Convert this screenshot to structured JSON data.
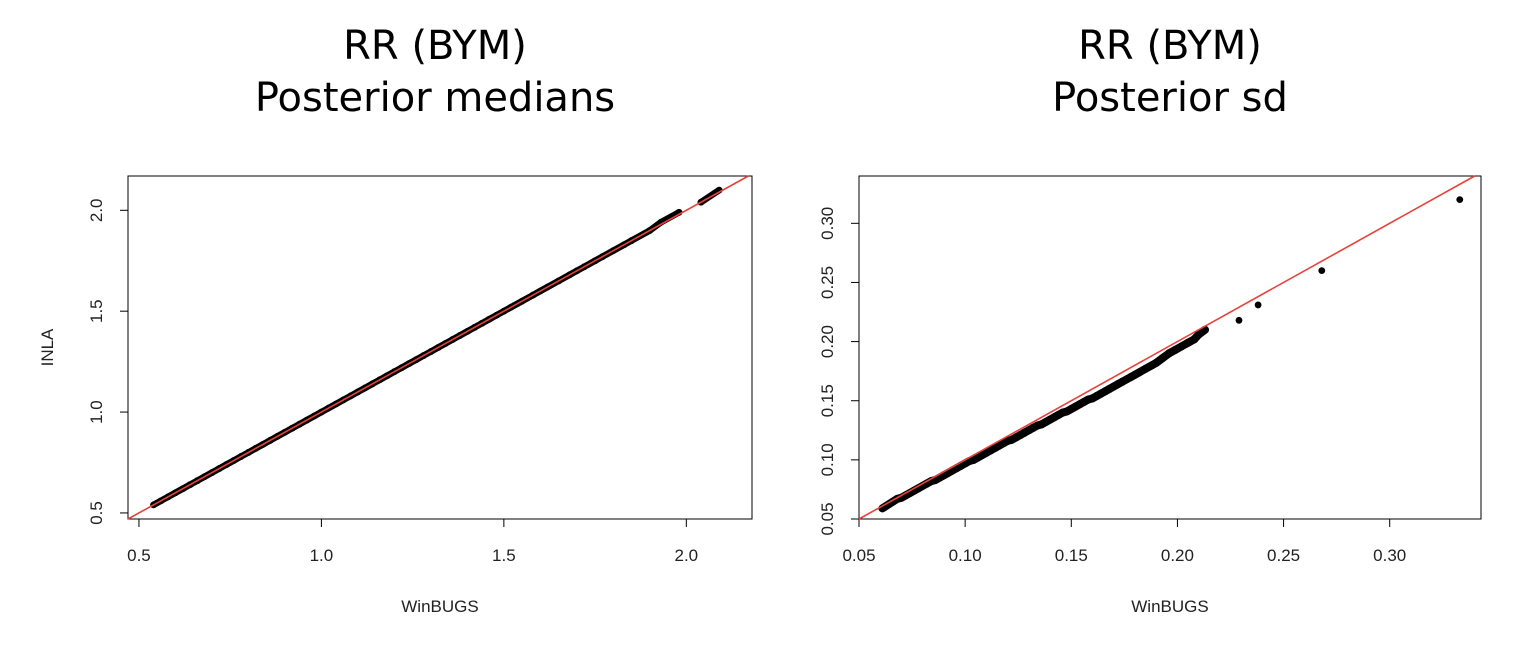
{
  "colors": {
    "points": "#000000",
    "identity_line": "#e8423a",
    "frame": "#000000"
  },
  "chart_data": [
    {
      "type": "scatter",
      "title_line1": "RR (BYM)",
      "title_line2": "Posterior medians",
      "xlabel": "WinBUGS",
      "ylabel": "INLA",
      "xlim": [
        0.47,
        2.18
      ],
      "ylim": [
        0.47,
        2.17
      ],
      "xticks": [
        "0.5",
        "1.0",
        "1.5",
        "2.0"
      ],
      "yticks": [
        "0.5",
        "1.0",
        "1.5",
        "2.0"
      ],
      "reference_line": "y = x",
      "grid": false,
      "points_note": "dense cloud of points lying on the identity line from about 0.54 to 1.78, plus sparse upper tail",
      "x": [
        0.54,
        0.56,
        0.58,
        0.6,
        0.62,
        0.64,
        0.66,
        0.68,
        0.7,
        0.72,
        0.74,
        0.76,
        0.78,
        0.8,
        0.82,
        0.84,
        0.86,
        0.88,
        0.9,
        0.92,
        0.94,
        0.96,
        0.98,
        1.0,
        1.02,
        1.04,
        1.06,
        1.08,
        1.1,
        1.12,
        1.14,
        1.16,
        1.18,
        1.2,
        1.22,
        1.24,
        1.26,
        1.28,
        1.3,
        1.32,
        1.34,
        1.36,
        1.38,
        1.4,
        1.42,
        1.44,
        1.46,
        1.48,
        1.5,
        1.52,
        1.55,
        1.58,
        1.6,
        1.62,
        1.65,
        1.68,
        1.7,
        1.72,
        1.75,
        1.77,
        1.8,
        1.83,
        1.85,
        1.9,
        1.93,
        1.98,
        2.04,
        2.09
      ],
      "y": [
        0.54,
        0.56,
        0.58,
        0.6,
        0.62,
        0.64,
        0.66,
        0.68,
        0.7,
        0.72,
        0.74,
        0.76,
        0.78,
        0.8,
        0.82,
        0.84,
        0.86,
        0.88,
        0.9,
        0.92,
        0.94,
        0.96,
        0.98,
        1.0,
        1.02,
        1.04,
        1.06,
        1.08,
        1.1,
        1.12,
        1.14,
        1.16,
        1.18,
        1.2,
        1.22,
        1.24,
        1.26,
        1.28,
        1.3,
        1.32,
        1.34,
        1.36,
        1.38,
        1.4,
        1.42,
        1.44,
        1.46,
        1.48,
        1.5,
        1.52,
        1.55,
        1.58,
        1.6,
        1.62,
        1.65,
        1.68,
        1.7,
        1.72,
        1.75,
        1.77,
        1.8,
        1.83,
        1.85,
        1.9,
        1.94,
        1.99,
        2.04,
        2.1
      ]
    },
    {
      "type": "scatter",
      "title_line1": "RR (BYM)",
      "title_line2": "Posterior sd",
      "xlabel": "WinBUGS",
      "ylabel": "",
      "xlim": [
        0.05,
        0.343
      ],
      "ylim": [
        0.05,
        0.34
      ],
      "xticks": [
        "0.05",
        "0.10",
        "0.15",
        "0.20",
        "0.25",
        "0.30"
      ],
      "yticks": [
        "0.05",
        "0.10",
        "0.15",
        "0.20",
        "0.25",
        "0.30"
      ],
      "reference_line": "y = x",
      "grid": false,
      "x": [
        0.061,
        0.068,
        0.07,
        0.072,
        0.074,
        0.076,
        0.078,
        0.08,
        0.082,
        0.084,
        0.086,
        0.088,
        0.09,
        0.092,
        0.094,
        0.096,
        0.098,
        0.1,
        0.102,
        0.104,
        0.106,
        0.108,
        0.11,
        0.112,
        0.114,
        0.116,
        0.118,
        0.12,
        0.122,
        0.124,
        0.126,
        0.128,
        0.13,
        0.132,
        0.134,
        0.136,
        0.138,
        0.14,
        0.142,
        0.144,
        0.146,
        0.148,
        0.15,
        0.152,
        0.154,
        0.156,
        0.158,
        0.16,
        0.162,
        0.164,
        0.166,
        0.168,
        0.17,
        0.172,
        0.174,
        0.176,
        0.178,
        0.18,
        0.182,
        0.185,
        0.188,
        0.19,
        0.193,
        0.196,
        0.199,
        0.202,
        0.205,
        0.208,
        0.21,
        0.213,
        0.229,
        0.238,
        0.268,
        0.333
      ],
      "y": [
        0.059,
        0.067,
        0.068,
        0.07,
        0.072,
        0.074,
        0.076,
        0.078,
        0.08,
        0.082,
        0.083,
        0.085,
        0.087,
        0.089,
        0.091,
        0.093,
        0.095,
        0.097,
        0.099,
        0.1,
        0.102,
        0.104,
        0.106,
        0.108,
        0.11,
        0.112,
        0.114,
        0.116,
        0.117,
        0.119,
        0.121,
        0.123,
        0.125,
        0.127,
        0.129,
        0.13,
        0.132,
        0.134,
        0.136,
        0.138,
        0.14,
        0.141,
        0.143,
        0.145,
        0.147,
        0.149,
        0.151,
        0.152,
        0.154,
        0.156,
        0.158,
        0.16,
        0.162,
        0.164,
        0.166,
        0.168,
        0.17,
        0.172,
        0.174,
        0.177,
        0.18,
        0.182,
        0.186,
        0.19,
        0.193,
        0.196,
        0.199,
        0.202,
        0.206,
        0.21,
        0.218,
        0.231,
        0.26,
        0.32
      ]
    }
  ]
}
